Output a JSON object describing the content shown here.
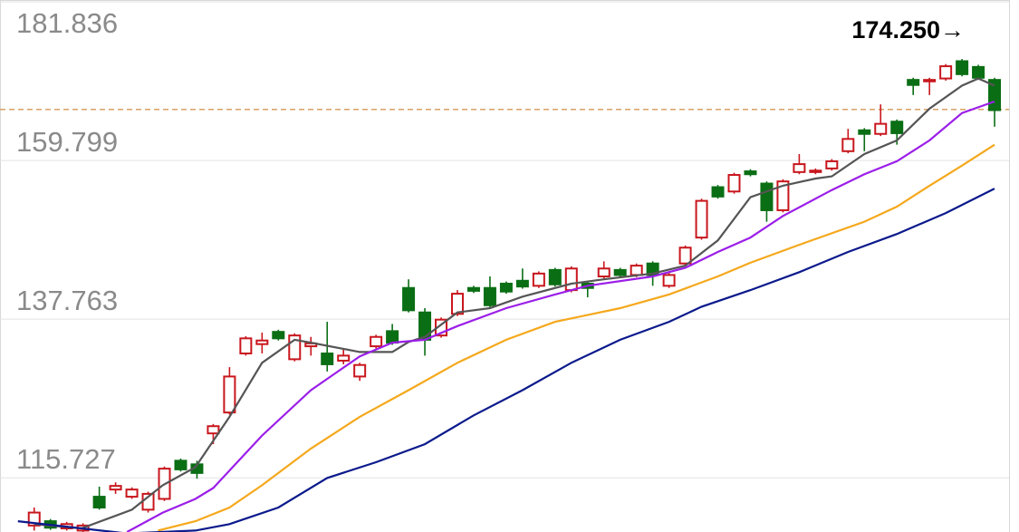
{
  "chart_data": {
    "type": "candlestick",
    "x": [
      0,
      1,
      2,
      3,
      4,
      5,
      6,
      7,
      8,
      9,
      10,
      11,
      12,
      13,
      14,
      15,
      16,
      17,
      18,
      19,
      20,
      21,
      22,
      23,
      24,
      25,
      26,
      27,
      28,
      29,
      30,
      31,
      32,
      33,
      34,
      35,
      36,
      37,
      38,
      39,
      40,
      41,
      42,
      43,
      44,
      45,
      46,
      47,
      48,
      49,
      50,
      51,
      52,
      53,
      54,
      55,
      56,
      57,
      58,
      59
    ],
    "open": [
      109.1,
      109.7,
      108.7,
      108.4,
      113.1,
      114.1,
      113.1,
      111.3,
      112.8,
      118.1,
      117.6,
      121.9,
      124.8,
      133.0,
      134.3,
      136.0,
      132.2,
      134.0,
      133.0,
      132.0,
      129.8,
      134.0,
      136.1,
      142.1,
      138.7,
      135.5,
      138.5,
      142.1,
      142.1,
      142.7,
      143.1,
      142.4,
      144.6,
      141.8,
      142.7,
      143.7,
      144.6,
      143.9,
      145.5,
      142.4,
      145.5,
      149.1,
      156.1,
      155.5,
      158.3,
      156.6,
      152.9,
      158.2,
      158.2,
      158.7,
      161.1,
      164.0,
      163.5,
      165.2,
      171.0,
      170.8,
      171.2,
      173.6,
      172.8,
      171.0
    ],
    "high": [
      111.6,
      110.0,
      109.6,
      109.4,
      114.5,
      115.1,
      114.4,
      113.8,
      117.3,
      118.4,
      118.1,
      123.2,
      131.1,
      135.4,
      135.9,
      136.3,
      135.8,
      135.3,
      137.4,
      133.6,
      131.7,
      135.6,
      137.1,
      143.3,
      139.3,
      138.0,
      141.8,
      142.4,
      143.7,
      143.0,
      144.8,
      144.4,
      144.9,
      145.1,
      143.0,
      145.8,
      144.9,
      145.5,
      145.8,
      144.2,
      148.0,
      154.5,
      156.4,
      158.1,
      158.6,
      156.9,
      157.2,
      160.7,
      158.7,
      160.0,
      164.2,
      164.3,
      167.6,
      165.5,
      171.3,
      171.3,
      173.2,
      173.9,
      173.1,
      171.3
    ],
    "low": [
      108.4,
      108.5,
      108.4,
      108.2,
      111.3,
      113.5,
      112.8,
      110.9,
      112.5,
      116.6,
      115.6,
      120.4,
      124.5,
      132.7,
      133.0,
      134.8,
      131.9,
      132.7,
      130.5,
      131.5,
      129.2,
      133.7,
      134.2,
      138.7,
      132.7,
      135.2,
      138.2,
      141.4,
      139.3,
      141.3,
      142.0,
      142.1,
      142.3,
      141.5,
      140.8,
      143.4,
      143.6,
      143.6,
      142.4,
      142.1,
      145.2,
      148.8,
      154.5,
      155.2,
      157.6,
      151.3,
      152.6,
      157.9,
      157.9,
      158.4,
      160.8,
      161.1,
      163.2,
      162.0,
      168.9,
      168.9,
      170.9,
      171.5,
      171.0,
      164.5
    ],
    "close": [
      110.9,
      108.8,
      109.3,
      109.1,
      111.6,
      114.6,
      114.1,
      113.5,
      117.0,
      116.9,
      116.4,
      122.9,
      129.8,
      135.1,
      134.8,
      135.1,
      135.5,
      134.4,
      131.5,
      132.7,
      131.4,
      135.3,
      134.5,
      139.0,
      134.9,
      137.7,
      141.3,
      141.7,
      139.7,
      141.6,
      142.3,
      144.1,
      142.6,
      144.8,
      142.1,
      144.8,
      143.9,
      145.2,
      143.9,
      143.9,
      147.7,
      154.2,
      154.8,
      157.8,
      157.9,
      152.9,
      156.9,
      159.3,
      158.4,
      159.7,
      162.8,
      163.5,
      164.9,
      163.6,
      170.3,
      171.0,
      172.9,
      171.8,
      171.3,
      166.8
    ],
    "up_color": "#c8161d",
    "down_color": "#0a6e14",
    "lines": [
      {
        "color": "#555555",
        "x": [
          0,
          2.9,
          6.0,
          7.9,
          9.9,
          12.0,
          14.0,
          16.0,
          17.0,
          20.0,
          22.0,
          23.0,
          24.0,
          26.0,
          28.0,
          30.0,
          33.0,
          35.0,
          38.0,
          40.0,
          42.0,
          44.0,
          46.0,
          48.0,
          49.0,
          51.0,
          53.0,
          55.0,
          57.0,
          58.0,
          59.0
        ],
        "values": [
          109.3,
          108.7,
          111.3,
          114.7,
          117.2,
          124.2,
          131.7,
          134.9,
          134.5,
          133.2,
          133.2,
          134.6,
          135.3,
          138.7,
          139.3,
          140.9,
          142.7,
          143.3,
          144.1,
          145.2,
          148.7,
          154.7,
          156.3,
          157.3,
          157.6,
          160.7,
          162.6,
          167.0,
          170.2,
          171.2,
          170.2
        ]
      },
      {
        "color": "#9b1ee8",
        "x": [
          5.7,
          7.9,
          9.9,
          11.0,
          14.0,
          17.0,
          20.0,
          22.0,
          24.0,
          26.0,
          29.0,
          32.0,
          34.0,
          38.0,
          40.0,
          42.0,
          44.0,
          46.0,
          49.0,
          51.0,
          53.0,
          55.0,
          57.0,
          59.0
        ],
        "values": [
          108.2,
          110.9,
          112.8,
          114.3,
          121.6,
          127.9,
          132.6,
          134.5,
          134.9,
          136.8,
          139.3,
          141.2,
          142.4,
          143.7,
          144.9,
          147.1,
          149.1,
          152.1,
          155.7,
          157.9,
          159.7,
          162.6,
          166.4,
          168.0
        ]
      },
      {
        "color": "#f5a81c",
        "x": [
          7.6,
          9.9,
          12.0,
          14.0,
          17.0,
          20.0,
          23.0,
          26.0,
          29.0,
          32.0,
          36.0,
          39.0,
          42.0,
          44.0,
          47.0,
          51.0,
          53.0,
          55.0,
          57.0,
          59.0
        ],
        "values": [
          108.4,
          109.7,
          111.6,
          114.7,
          119.8,
          124.2,
          127.9,
          131.7,
          134.9,
          137.4,
          139.3,
          141.2,
          143.7,
          145.6,
          148.1,
          151.3,
          153.4,
          156.3,
          159.1,
          162.0
        ]
      },
      {
        "color": "#0b1a8c",
        "x": [
          -1.0,
          2.9,
          5.7,
          9.9,
          12.0,
          15.0,
          18.0,
          21.0,
          24.0,
          27.0,
          30.0,
          33.0,
          36.0,
          39.0,
          41.0,
          44.0,
          47.0,
          50.0,
          53.0,
          56.0,
          59.0
        ],
        "values": [
          109.7,
          108.7,
          108.0,
          108.4,
          109.3,
          111.6,
          115.7,
          117.9,
          120.4,
          124.4,
          127.9,
          131.7,
          134.9,
          137.4,
          139.5,
          141.8,
          144.3,
          147.1,
          149.6,
          152.5,
          155.9
        ]
      }
    ],
    "reference_line": {
      "value": 166.9,
      "color": "#d9a066"
    },
    "annotation": "174.250→",
    "xlim": [
      -2.1,
      60.5
    ],
    "ylim": [
      108.2,
      182.1
    ],
    "yticks": [
      115.727,
      137.763,
      159.799,
      181.836
    ],
    "grid": true
  }
}
